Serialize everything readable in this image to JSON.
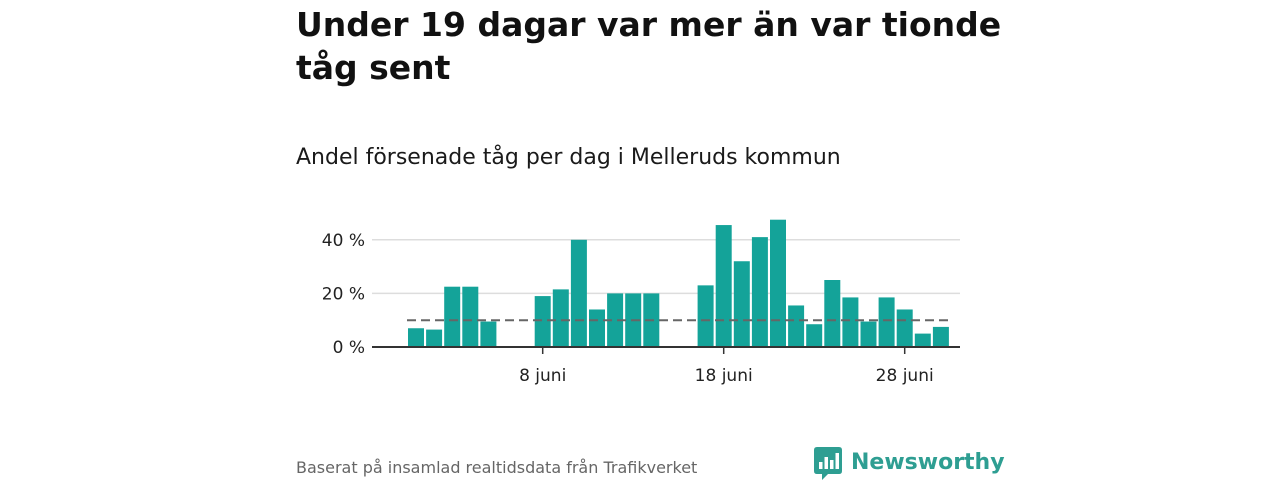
{
  "headline": "Under 19 dagar var mer än var tionde tåg sent",
  "subtitle": "Andel försenade tåg per dag i Melleruds kommun",
  "source": "Baserat på insamlad realtidsdata från Trafikverket",
  "brand": {
    "name": "Newsworthy",
    "icon": "bar-chart-logo-icon",
    "color": "#2e9e92"
  },
  "colors": {
    "bar": "#14a399",
    "reference_line": "#666666",
    "gridline": "#dddddd",
    "axis": "#333333"
  },
  "chart_data": {
    "type": "bar",
    "title": "Andel försenade tåg per dag i Melleruds kommun",
    "xlabel": "",
    "ylabel": "",
    "x_unit": "day of June",
    "x": [
      1,
      2,
      3,
      4,
      5,
      6,
      7,
      8,
      9,
      10,
      11,
      12,
      13,
      14,
      15,
      16,
      17,
      18,
      19,
      20,
      21,
      22,
      23,
      24,
      25,
      26,
      27,
      28,
      29,
      30
    ],
    "values": [
      7,
      6.5,
      22.5,
      22.5,
      9.5,
      null,
      null,
      19,
      21.5,
      40,
      14,
      20,
      20,
      20,
      null,
      null,
      23,
      45.5,
      32,
      41,
      47.5,
      15.5,
      8.5,
      25,
      18.5,
      9.5,
      18.5,
      14,
      5,
      7.5
    ],
    "reference_line": {
      "value": 10,
      "style": "dashed"
    },
    "ylim": [
      0,
      50
    ],
    "y_ticks": [
      {
        "value": 0,
        "label": "0 %"
      },
      {
        "value": 20,
        "label": "20 %"
      },
      {
        "value": 40,
        "label": "40 %"
      }
    ],
    "x_ticks": [
      {
        "value": 8,
        "label": "8 juni"
      },
      {
        "value": 18,
        "label": "18 juni"
      },
      {
        "value": 28,
        "label": "28 juni"
      }
    ],
    "grid": true
  }
}
